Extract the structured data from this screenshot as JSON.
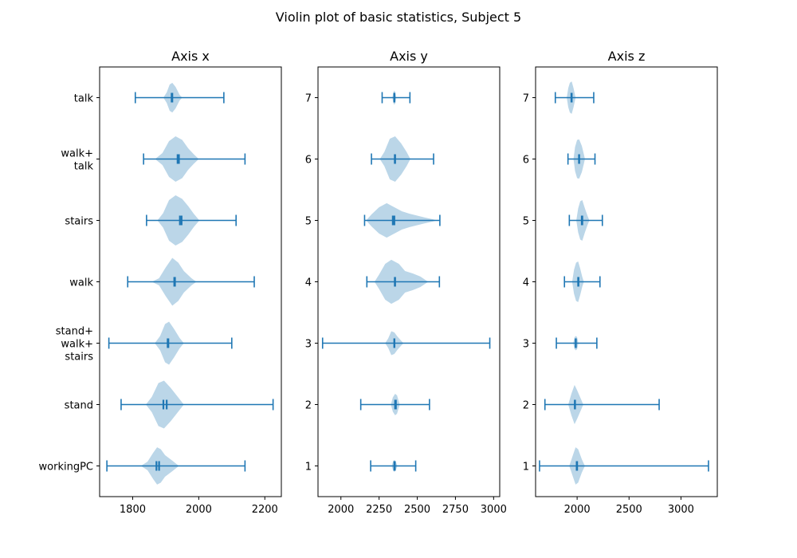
{
  "figure": {
    "suptitle": "Violin plot of basic statistics, Subject 5",
    "style": {
      "violin_fill": "#1f77b4",
      "violin_fill_opacity": 0.3,
      "line_color": "#1f77b4",
      "text_color": "#000000"
    }
  },
  "chart_data": [
    {
      "type": "violin",
      "title": "Axis x",
      "xlim": [
        1700,
        2250
      ],
      "xticks": [
        1800,
        2000,
        2200
      ],
      "ylim": [
        0.5,
        7.5
      ],
      "ytick_labels": [
        "workingPC",
        "stand",
        "stand+\nwalk+\nstairs",
        "walk",
        "stairs",
        "walk+\ntalk",
        "talk"
      ],
      "series": [
        {
          "pos": 1,
          "min": 1722,
          "max": 2140,
          "mean": 1872,
          "median": 1880,
          "shape": [
            [
              1825,
              0
            ],
            [
              1845,
              0.18
            ],
            [
              1862,
              0.55
            ],
            [
              1874,
              0.78
            ],
            [
              1885,
              0.7
            ],
            [
              1898,
              0.45
            ],
            [
              1920,
              0.22
            ],
            [
              1940,
              0
            ]
          ]
        },
        {
          "pos": 2,
          "min": 1765,
          "max": 2225,
          "mean": 1893,
          "median": 1903,
          "shape": [
            [
              1840,
              0
            ],
            [
              1858,
              0.32
            ],
            [
              1878,
              0.9
            ],
            [
              1895,
              1.0
            ],
            [
              1915,
              0.7
            ],
            [
              1935,
              0.35
            ],
            [
              1955,
              0
            ]
          ]
        },
        {
          "pos": 3,
          "min": 1728,
          "max": 2100,
          "mean": 1906,
          "median": 1908,
          "shape": [
            [
              1867,
              0
            ],
            [
              1883,
              0.3
            ],
            [
              1898,
              0.8
            ],
            [
              1910,
              0.9
            ],
            [
              1925,
              0.6
            ],
            [
              1942,
              0.22
            ],
            [
              1955,
              0
            ]
          ]
        },
        {
          "pos": 4,
          "min": 1785,
          "max": 2168,
          "mean": 1926,
          "median": 1928,
          "shape": [
            [
              1858,
              0
            ],
            [
              1880,
              0.15
            ],
            [
              1900,
              0.6
            ],
            [
              1920,
              1.0
            ],
            [
              1938,
              0.8
            ],
            [
              1955,
              0.45
            ],
            [
              1978,
              0.15
            ],
            [
              1993,
              0
            ]
          ]
        },
        {
          "pos": 5,
          "min": 1842,
          "max": 2113,
          "mean": 1943,
          "median": 1948,
          "shape": [
            [
              1875,
              0
            ],
            [
              1892,
              0.3
            ],
            [
              1910,
              0.85
            ],
            [
              1930,
              1.05
            ],
            [
              1950,
              0.9
            ],
            [
              1968,
              0.6
            ],
            [
              1985,
              0.28
            ],
            [
              2002,
              0
            ]
          ]
        },
        {
          "pos": 6,
          "min": 1833,
          "max": 2140,
          "mean": 1936,
          "median": 1940,
          "shape": [
            [
              1868,
              0
            ],
            [
              1890,
              0.25
            ],
            [
              1910,
              0.75
            ],
            [
              1930,
              0.95
            ],
            [
              1950,
              0.8
            ],
            [
              1968,
              0.45
            ],
            [
              1985,
              0.2
            ],
            [
              2000,
              0
            ]
          ]
        },
        {
          "pos": 7,
          "min": 1808,
          "max": 2076,
          "mean": 1918,
          "median": 1920,
          "shape": [
            [
              1893,
              0
            ],
            [
              1903,
              0.22
            ],
            [
              1912,
              0.55
            ],
            [
              1920,
              0.62
            ],
            [
              1930,
              0.45
            ],
            [
              1942,
              0.12
            ],
            [
              1950,
              0
            ]
          ]
        }
      ]
    },
    {
      "type": "violin",
      "title": "Axis y",
      "xlim": [
        1850,
        3040
      ],
      "xticks": [
        2000,
        2250,
        2500,
        2750,
        3000
      ],
      "ylim": [
        0.5,
        7.5
      ],
      "ytick_labels": [
        "1",
        "2",
        "3",
        "4",
        "5",
        "6",
        "7"
      ],
      "series": [
        {
          "pos": 1,
          "min": 2195,
          "max": 2490,
          "mean": 2350,
          "median": 2353,
          "shape": [
            [
              2333,
              0
            ],
            [
              2342,
              0.2
            ],
            [
              2350,
              0.25
            ],
            [
              2358,
              0.2
            ],
            [
              2370,
              0
            ]
          ]
        },
        {
          "pos": 2,
          "min": 2130,
          "max": 2580,
          "mean": 2355,
          "median": 2360,
          "shape": [
            [
              2327,
              0
            ],
            [
              2340,
              0.3
            ],
            [
              2355,
              0.45
            ],
            [
              2368,
              0.38
            ],
            [
              2385,
              0
            ]
          ]
        },
        {
          "pos": 3,
          "min": 1880,
          "max": 2975,
          "mean": 2350,
          "median": 2350,
          "shape": [
            [
              2290,
              0
            ],
            [
              2310,
              0.2
            ],
            [
              2330,
              0.5
            ],
            [
              2350,
              0.45
            ],
            [
              2370,
              0.28
            ],
            [
              2395,
              0.1
            ],
            [
              2410,
              0
            ]
          ]
        },
        {
          "pos": 4,
          "min": 2170,
          "max": 2645,
          "mean": 2355,
          "median": 2353,
          "shape": [
            [
              2220,
              0
            ],
            [
              2250,
              0.3
            ],
            [
              2290,
              0.75
            ],
            [
              2330,
              0.92
            ],
            [
              2380,
              0.75
            ],
            [
              2420,
              0.45
            ],
            [
              2470,
              0.35
            ],
            [
              2520,
              0.22
            ],
            [
              2560,
              0.05
            ],
            [
              2575,
              0
            ]
          ]
        },
        {
          "pos": 5,
          "min": 2155,
          "max": 2648,
          "mean": 2340,
          "median": 2350,
          "shape": [
            [
              2165,
              0
            ],
            [
              2200,
              0.25
            ],
            [
              2250,
              0.55
            ],
            [
              2300,
              0.72
            ],
            [
              2350,
              0.55
            ],
            [
              2400,
              0.38
            ],
            [
              2450,
              0.28
            ],
            [
              2500,
              0.2
            ],
            [
              2550,
              0.12
            ],
            [
              2600,
              0.05
            ],
            [
              2630,
              0
            ]
          ]
        },
        {
          "pos": 6,
          "min": 2200,
          "max": 2607,
          "mean": 2355,
          "median": 2353,
          "shape": [
            [
              2255,
              0
            ],
            [
              2285,
              0.3
            ],
            [
              2320,
              0.85
            ],
            [
              2355,
              0.95
            ],
            [
              2395,
              0.65
            ],
            [
              2430,
              0.3
            ],
            [
              2455,
              0
            ]
          ]
        },
        {
          "pos": 7,
          "min": 2270,
          "max": 2452,
          "mean": 2350,
          "median": 2350,
          "shape": [
            [
              2337,
              0
            ],
            [
              2344,
              0.22
            ],
            [
              2350,
              0.3
            ],
            [
              2357,
              0.22
            ],
            [
              2363,
              0
            ]
          ]
        }
      ]
    },
    {
      "type": "violin",
      "title": "Axis z",
      "xlim": [
        1600,
        3350
      ],
      "xticks": [
        2000,
        2500,
        3000
      ],
      "ylim": [
        0.5,
        7.5
      ],
      "ytick_labels": [
        "1",
        "2",
        "3",
        "4",
        "5",
        "6",
        "7"
      ],
      "series": [
        {
          "pos": 1,
          "min": 1638,
          "max": 3265,
          "mean": 2000,
          "median": 1996,
          "shape": [
            [
              1925,
              0
            ],
            [
              1955,
              0.4
            ],
            [
              1985,
              0.78
            ],
            [
              2010,
              0.7
            ],
            [
              2045,
              0.28
            ],
            [
              2075,
              0
            ]
          ]
        },
        {
          "pos": 2,
          "min": 1690,
          "max": 2790,
          "mean": 1978,
          "median": 1980,
          "shape": [
            [
              1915,
              0
            ],
            [
              1945,
              0.45
            ],
            [
              1975,
              0.82
            ],
            [
              2000,
              0.6
            ],
            [
              2040,
              0.2
            ],
            [
              2060,
              0
            ]
          ]
        },
        {
          "pos": 3,
          "min": 1800,
          "max": 2190,
          "mean": 1986,
          "median": 1988,
          "shape": [
            [
              1962,
              0
            ],
            [
              1975,
              0.25
            ],
            [
              1988,
              0.3
            ],
            [
              2000,
              0.25
            ],
            [
              2012,
              0
            ]
          ]
        },
        {
          "pos": 4,
          "min": 1878,
          "max": 2220,
          "mean": 2010,
          "median": 2013,
          "shape": [
            [
              1952,
              0
            ],
            [
              1970,
              0.5
            ],
            [
              1990,
              0.8
            ],
            [
              2010,
              0.85
            ],
            [
              2030,
              0.55
            ],
            [
              2050,
              0.2
            ],
            [
              2065,
              0
            ]
          ]
        },
        {
          "pos": 5,
          "min": 1925,
          "max": 2243,
          "mean": 2050,
          "median": 2045,
          "shape": [
            [
              1992,
              0
            ],
            [
              2010,
              0.5
            ],
            [
              2030,
              0.8
            ],
            [
              2050,
              0.85
            ],
            [
              2075,
              0.5
            ],
            [
              2100,
              0.2
            ],
            [
              2118,
              0
            ]
          ]
        },
        {
          "pos": 6,
          "min": 1912,
          "max": 2172,
          "mean": 2018,
          "median": 2020,
          "shape": [
            [
              1965,
              0
            ],
            [
              1980,
              0.5
            ],
            [
              2000,
              0.8
            ],
            [
              2020,
              0.82
            ],
            [
              2045,
              0.55
            ],
            [
              2065,
              0.2
            ],
            [
              2075,
              0
            ]
          ]
        },
        {
          "pos": 7,
          "min": 1790,
          "max": 2160,
          "mean": 1945,
          "median": 1948,
          "shape": [
            [
              1900,
              0
            ],
            [
              1915,
              0.4
            ],
            [
              1930,
              0.62
            ],
            [
              1948,
              0.68
            ],
            [
              1965,
              0.4
            ],
            [
              1985,
              0
            ]
          ]
        }
      ]
    }
  ]
}
